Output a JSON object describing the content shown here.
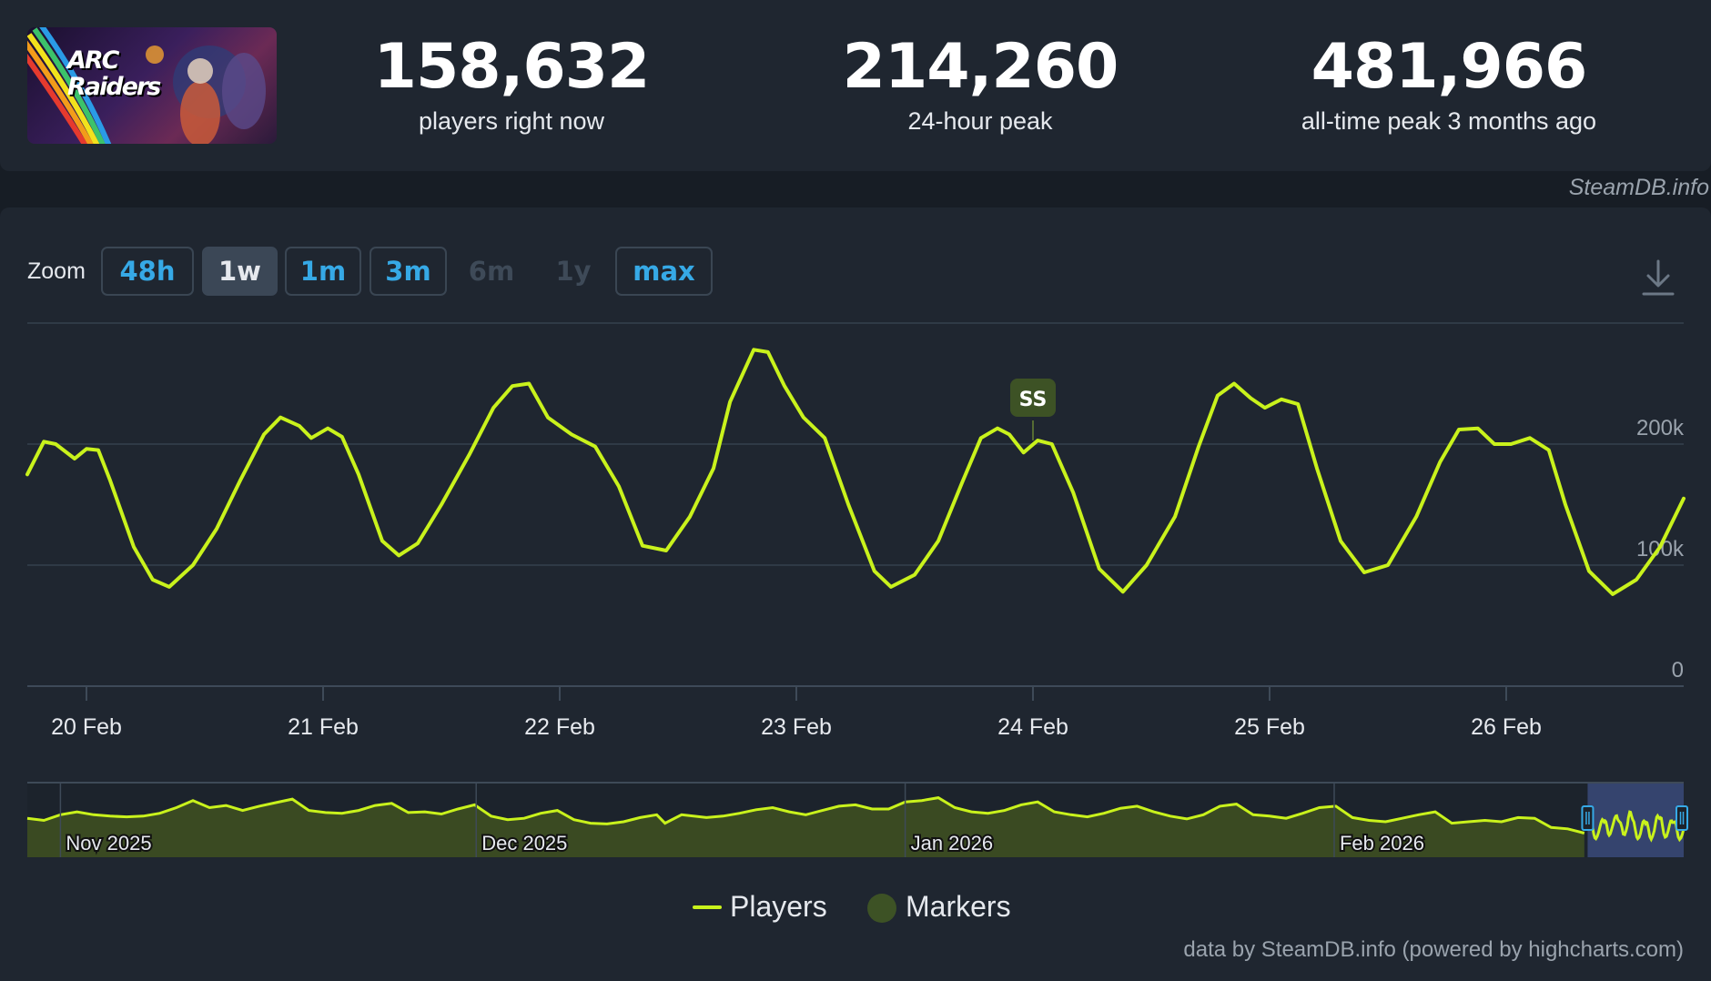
{
  "game": {
    "name": "ARC Raiders",
    "logo_line1": "ARC",
    "logo_line2": "Raiders",
    "icon": "game-capsule-image"
  },
  "stats": [
    {
      "value": "158,632",
      "label": "players right now"
    },
    {
      "value": "214,260",
      "label": "24-hour peak"
    },
    {
      "value": "481,966",
      "label": "all-time peak 3 months ago"
    }
  ],
  "credit_top": "SteamDB.info",
  "zoom": {
    "label": "Zoom",
    "buttons": [
      {
        "label": "48h",
        "state": "enabled"
      },
      {
        "label": "1w",
        "state": "active"
      },
      {
        "label": "1m",
        "state": "enabled"
      },
      {
        "label": "3m",
        "state": "enabled"
      },
      {
        "label": "6m",
        "state": "disabled"
      },
      {
        "label": "1y",
        "state": "disabled"
      },
      {
        "label": "max",
        "state": "enabled"
      }
    ]
  },
  "download_icon": "download-icon",
  "colors": {
    "players_line": "#c9f21c",
    "marker": "#3d5225",
    "link": "#36a9e6",
    "navigator_fill": "#3a4a22",
    "navigator_selection": "#3a4a7a"
  },
  "chart_data": {
    "type": "line",
    "x_unit": "days",
    "x_ticks": [
      "20 Feb",
      "21 Feb",
      "22 Feb",
      "23 Feb",
      "24 Feb",
      "25 Feb",
      "26 Feb"
    ],
    "y_ticks": [
      "0",
      "100k",
      "200k"
    ],
    "ylim": [
      0,
      300000
    ],
    "grid": true,
    "legend_position": "bottom-center",
    "series": [
      {
        "name": "Players",
        "points": [
          [
            19.75,
            175000
          ],
          [
            19.82,
            202000
          ],
          [
            19.87,
            200000
          ],
          [
            19.95,
            188000
          ],
          [
            20.0,
            196000
          ],
          [
            20.05,
            195000
          ],
          [
            20.1,
            170000
          ],
          [
            20.2,
            115000
          ],
          [
            20.28,
            88000
          ],
          [
            20.35,
            82000
          ],
          [
            20.45,
            100000
          ],
          [
            20.55,
            130000
          ],
          [
            20.65,
            170000
          ],
          [
            20.75,
            208000
          ],
          [
            20.82,
            222000
          ],
          [
            20.9,
            215000
          ],
          [
            20.95,
            205000
          ],
          [
            21.02,
            213000
          ],
          [
            21.08,
            206000
          ],
          [
            21.15,
            175000
          ],
          [
            21.25,
            120000
          ],
          [
            21.32,
            108000
          ],
          [
            21.4,
            118000
          ],
          [
            21.5,
            150000
          ],
          [
            21.62,
            192000
          ],
          [
            21.72,
            230000
          ],
          [
            21.8,
            248000
          ],
          [
            21.87,
            250000
          ],
          [
            21.95,
            222000
          ],
          [
            22.05,
            208000
          ],
          [
            22.15,
            198000
          ],
          [
            22.25,
            165000
          ],
          [
            22.35,
            116000
          ],
          [
            22.45,
            112000
          ],
          [
            22.55,
            140000
          ],
          [
            22.65,
            180000
          ],
          [
            22.72,
            235000
          ],
          [
            22.82,
            278000
          ],
          [
            22.88,
            276000
          ],
          [
            22.95,
            248000
          ],
          [
            23.03,
            222000
          ],
          [
            23.12,
            205000
          ],
          [
            23.22,
            150000
          ],
          [
            23.33,
            95000
          ],
          [
            23.4,
            82000
          ],
          [
            23.5,
            92000
          ],
          [
            23.6,
            120000
          ],
          [
            23.7,
            168000
          ],
          [
            23.78,
            205000
          ],
          [
            23.85,
            213000
          ],
          [
            23.9,
            208000
          ],
          [
            23.96,
            193000
          ],
          [
            24.02,
            203000
          ],
          [
            24.08,
            200000
          ],
          [
            24.17,
            160000
          ],
          [
            24.28,
            97000
          ],
          [
            24.38,
            78000
          ],
          [
            24.48,
            100000
          ],
          [
            24.6,
            140000
          ],
          [
            24.7,
            198000
          ],
          [
            24.78,
            240000
          ],
          [
            24.85,
            250000
          ],
          [
            24.92,
            238000
          ],
          [
            24.98,
            230000
          ],
          [
            25.05,
            237000
          ],
          [
            25.12,
            233000
          ],
          [
            25.2,
            180000
          ],
          [
            25.3,
            120000
          ],
          [
            25.4,
            94000
          ],
          [
            25.5,
            100000
          ],
          [
            25.62,
            140000
          ],
          [
            25.72,
            185000
          ],
          [
            25.8,
            212000
          ],
          [
            25.88,
            213000
          ],
          [
            25.95,
            200000
          ],
          [
            26.02,
            200000
          ],
          [
            26.1,
            205000
          ],
          [
            26.18,
            195000
          ],
          [
            26.25,
            150000
          ],
          [
            26.35,
            95000
          ],
          [
            26.45,
            76000
          ],
          [
            26.55,
            88000
          ],
          [
            26.65,
            115000
          ],
          [
            26.75,
            155000
          ]
        ]
      }
    ],
    "markers": [
      {
        "x": 24.0,
        "label": "SS"
      }
    ],
    "navigator": {
      "labels": [
        {
          "text": "Nov 2025",
          "x": 0.02
        },
        {
          "text": "Dec 2025",
          "x": 0.271
        },
        {
          "text": "Jan 2026",
          "x": 0.53
        },
        {
          "text": "Feb 2026",
          "x": 0.789
        }
      ],
      "selection": [
        0.942,
        1.0
      ],
      "points": [
        [
          0,
          0.55
        ],
        [
          0.01,
          0.52
        ],
        [
          0.02,
          0.6
        ],
        [
          0.03,
          0.64
        ],
        [
          0.04,
          0.6
        ],
        [
          0.05,
          0.58
        ],
        [
          0.06,
          0.57
        ],
        [
          0.07,
          0.58
        ],
        [
          0.08,
          0.62
        ],
        [
          0.09,
          0.7
        ],
        [
          0.1,
          0.8
        ],
        [
          0.11,
          0.7
        ],
        [
          0.12,
          0.73
        ],
        [
          0.13,
          0.66
        ],
        [
          0.14,
          0.72
        ],
        [
          0.15,
          0.77
        ],
        [
          0.16,
          0.82
        ],
        [
          0.17,
          0.66
        ],
        [
          0.18,
          0.63
        ],
        [
          0.19,
          0.62
        ],
        [
          0.2,
          0.66
        ],
        [
          0.21,
          0.73
        ],
        [
          0.22,
          0.76
        ],
        [
          0.23,
          0.63
        ],
        [
          0.24,
          0.64
        ],
        [
          0.25,
          0.61
        ],
        [
          0.26,
          0.68
        ],
        [
          0.27,
          0.74
        ],
        [
          0.28,
          0.58
        ],
        [
          0.29,
          0.53
        ],
        [
          0.3,
          0.55
        ],
        [
          0.31,
          0.62
        ],
        [
          0.32,
          0.66
        ],
        [
          0.33,
          0.53
        ],
        [
          0.34,
          0.48
        ],
        [
          0.35,
          0.47
        ],
        [
          0.36,
          0.5
        ],
        [
          0.37,
          0.56
        ],
        [
          0.38,
          0.6
        ],
        [
          0.385,
          0.48
        ],
        [
          0.395,
          0.6
        ],
        [
          0.41,
          0.56
        ],
        [
          0.42,
          0.58
        ],
        [
          0.43,
          0.62
        ],
        [
          0.44,
          0.67
        ],
        [
          0.45,
          0.7
        ],
        [
          0.46,
          0.64
        ],
        [
          0.47,
          0.6
        ],
        [
          0.48,
          0.66
        ],
        [
          0.49,
          0.72
        ],
        [
          0.5,
          0.74
        ],
        [
          0.51,
          0.68
        ],
        [
          0.52,
          0.68
        ],
        [
          0.53,
          0.78
        ],
        [
          0.54,
          0.8
        ],
        [
          0.55,
          0.84
        ],
        [
          0.56,
          0.7
        ],
        [
          0.57,
          0.64
        ],
        [
          0.58,
          0.62
        ],
        [
          0.59,
          0.66
        ],
        [
          0.6,
          0.74
        ],
        [
          0.61,
          0.78
        ],
        [
          0.62,
          0.64
        ],
        [
          0.63,
          0.6
        ],
        [
          0.64,
          0.57
        ],
        [
          0.65,
          0.62
        ],
        [
          0.66,
          0.69
        ],
        [
          0.67,
          0.72
        ],
        [
          0.68,
          0.64
        ],
        [
          0.69,
          0.58
        ],
        [
          0.7,
          0.54
        ],
        [
          0.71,
          0.6
        ],
        [
          0.72,
          0.72
        ],
        [
          0.73,
          0.75
        ],
        [
          0.74,
          0.6
        ],
        [
          0.75,
          0.58
        ],
        [
          0.76,
          0.55
        ],
        [
          0.77,
          0.62
        ],
        [
          0.78,
          0.7
        ],
        [
          0.79,
          0.72
        ],
        [
          0.8,
          0.56
        ],
        [
          0.81,
          0.52
        ],
        [
          0.82,
          0.5
        ],
        [
          0.83,
          0.55
        ],
        [
          0.84,
          0.6
        ],
        [
          0.85,
          0.64
        ],
        [
          0.86,
          0.48
        ],
        [
          0.87,
          0.5
        ],
        [
          0.88,
          0.52
        ],
        [
          0.89,
          0.5
        ],
        [
          0.9,
          0.56
        ],
        [
          0.91,
          0.55
        ],
        [
          0.92,
          0.42
        ],
        [
          0.93,
          0.4
        ],
        [
          0.94,
          0.34
        ]
      ]
    }
  },
  "legend": [
    {
      "label": "Players",
      "icon": "line-swatch"
    },
    {
      "label": "Markers",
      "icon": "dot-swatch"
    }
  ],
  "credit_bottom": "data by SteamDB.info (powered by highcharts.com)"
}
